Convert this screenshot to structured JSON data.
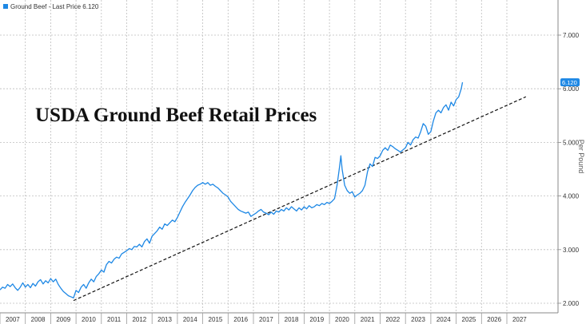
{
  "chart_data": {
    "type": "line",
    "title": "USDA Ground Beef Retail Prices",
    "ylabel": "Per Pound",
    "legend": {
      "label": "Ground Beef - Last Price 6.120",
      "placement": "top-left"
    },
    "last_value_label": "6.120",
    "xlim": [
      2007,
      2028
    ],
    "ylim": [
      1.95,
      7.6
    ],
    "x_ticks": [
      "2007",
      "2008",
      "2009",
      "2010",
      "2011",
      "2012",
      "2013",
      "2014",
      "2015",
      "2016",
      "2017",
      "2018",
      "2019",
      "2020",
      "2021",
      "2022",
      "2023",
      "2024",
      "2025",
      "2026",
      "2027"
    ],
    "y_ticks": [
      "2.000",
      "3.000",
      "4.000",
      "5.000",
      "6.000",
      "7.000"
    ],
    "grid": true,
    "colors": {
      "series": "#1e88e5",
      "trend": "#111111",
      "grid": "#bdbdbd"
    },
    "series": [
      {
        "values": [
          [
            2007.0,
            2.25
          ],
          [
            2007.1,
            2.3
          ],
          [
            2007.2,
            2.28
          ],
          [
            2007.3,
            2.35
          ],
          [
            2007.4,
            2.31
          ],
          [
            2007.5,
            2.36
          ],
          [
            2007.6,
            2.29
          ],
          [
            2007.7,
            2.24
          ],
          [
            2007.8,
            2.3
          ],
          [
            2007.9,
            2.38
          ],
          [
            2008.0,
            2.3
          ],
          [
            2008.1,
            2.35
          ],
          [
            2008.2,
            2.29
          ],
          [
            2008.3,
            2.37
          ],
          [
            2008.4,
            2.32
          ],
          [
            2008.5,
            2.4
          ],
          [
            2008.6,
            2.44
          ],
          [
            2008.7,
            2.36
          ],
          [
            2008.8,
            2.42
          ],
          [
            2008.9,
            2.38
          ],
          [
            2009.0,
            2.46
          ],
          [
            2009.1,
            2.4
          ],
          [
            2009.2,
            2.45
          ],
          [
            2009.3,
            2.35
          ],
          [
            2009.4,
            2.28
          ],
          [
            2009.5,
            2.22
          ],
          [
            2009.6,
            2.18
          ],
          [
            2009.7,
            2.14
          ],
          [
            2009.8,
            2.12
          ],
          [
            2009.9,
            2.1
          ],
          [
            2010.0,
            2.24
          ],
          [
            2010.1,
            2.2
          ],
          [
            2010.2,
            2.3
          ],
          [
            2010.3,
            2.35
          ],
          [
            2010.4,
            2.28
          ],
          [
            2010.5,
            2.38
          ],
          [
            2010.6,
            2.45
          ],
          [
            2010.7,
            2.4
          ],
          [
            2010.8,
            2.5
          ],
          [
            2010.9,
            2.55
          ],
          [
            2011.0,
            2.62
          ],
          [
            2011.1,
            2.58
          ],
          [
            2011.2,
            2.72
          ],
          [
            2011.3,
            2.78
          ],
          [
            2011.4,
            2.75
          ],
          [
            2011.5,
            2.82
          ],
          [
            2011.6,
            2.86
          ],
          [
            2011.7,
            2.84
          ],
          [
            2011.8,
            2.92
          ],
          [
            2011.9,
            2.95
          ],
          [
            2012.0,
            2.98
          ],
          [
            2012.1,
            3.02
          ],
          [
            2012.2,
            3.0
          ],
          [
            2012.3,
            3.06
          ],
          [
            2012.4,
            3.05
          ],
          [
            2012.5,
            3.1
          ],
          [
            2012.6,
            3.05
          ],
          [
            2012.7,
            3.15
          ],
          [
            2012.8,
            3.2
          ],
          [
            2012.9,
            3.12
          ],
          [
            2013.0,
            3.25
          ],
          [
            2013.1,
            3.3
          ],
          [
            2013.2,
            3.35
          ],
          [
            2013.3,
            3.42
          ],
          [
            2013.4,
            3.38
          ],
          [
            2013.5,
            3.48
          ],
          [
            2013.6,
            3.45
          ],
          [
            2013.7,
            3.5
          ],
          [
            2013.8,
            3.55
          ],
          [
            2013.9,
            3.52
          ],
          [
            2014.0,
            3.6
          ],
          [
            2014.1,
            3.7
          ],
          [
            2014.2,
            3.8
          ],
          [
            2014.3,
            3.88
          ],
          [
            2014.4,
            3.95
          ],
          [
            2014.5,
            4.02
          ],
          [
            2014.6,
            4.1
          ],
          [
            2014.7,
            4.16
          ],
          [
            2014.8,
            4.2
          ],
          [
            2014.9,
            4.22
          ],
          [
            2015.0,
            4.25
          ],
          [
            2015.1,
            4.22
          ],
          [
            2015.2,
            4.25
          ],
          [
            2015.3,
            4.2
          ],
          [
            2015.4,
            4.22
          ],
          [
            2015.5,
            4.18
          ],
          [
            2015.6,
            4.15
          ],
          [
            2015.7,
            4.1
          ],
          [
            2015.8,
            4.05
          ],
          [
            2015.9,
            4.02
          ],
          [
            2016.0,
            3.98
          ],
          [
            2016.1,
            3.9
          ],
          [
            2016.2,
            3.85
          ],
          [
            2016.3,
            3.8
          ],
          [
            2016.4,
            3.75
          ],
          [
            2016.5,
            3.72
          ],
          [
            2016.6,
            3.7
          ],
          [
            2016.7,
            3.68
          ],
          [
            2016.8,
            3.7
          ],
          [
            2016.9,
            3.62
          ],
          [
            2017.0,
            3.65
          ],
          [
            2017.1,
            3.68
          ],
          [
            2017.2,
            3.72
          ],
          [
            2017.3,
            3.75
          ],
          [
            2017.4,
            3.7
          ],
          [
            2017.5,
            3.68
          ],
          [
            2017.6,
            3.65
          ],
          [
            2017.7,
            3.7
          ],
          [
            2017.8,
            3.66
          ],
          [
            2017.9,
            3.72
          ],
          [
            2018.0,
            3.7
          ],
          [
            2018.1,
            3.75
          ],
          [
            2018.2,
            3.72
          ],
          [
            2018.3,
            3.78
          ],
          [
            2018.4,
            3.74
          ],
          [
            2018.5,
            3.8
          ],
          [
            2018.6,
            3.76
          ],
          [
            2018.7,
            3.72
          ],
          [
            2018.8,
            3.78
          ],
          [
            2018.9,
            3.74
          ],
          [
            2019.0,
            3.8
          ],
          [
            2019.1,
            3.76
          ],
          [
            2019.2,
            3.82
          ],
          [
            2019.3,
            3.78
          ],
          [
            2019.4,
            3.8
          ],
          [
            2019.5,
            3.84
          ],
          [
            2019.6,
            3.82
          ],
          [
            2019.7,
            3.86
          ],
          [
            2019.8,
            3.84
          ],
          [
            2019.9,
            3.88
          ],
          [
            2020.0,
            3.86
          ],
          [
            2020.1,
            3.9
          ],
          [
            2020.2,
            3.95
          ],
          [
            2020.3,
            4.2
          ],
          [
            2020.4,
            4.55
          ],
          [
            2020.45,
            4.75
          ],
          [
            2020.5,
            4.5
          ],
          [
            2020.6,
            4.2
          ],
          [
            2020.7,
            4.1
          ],
          [
            2020.8,
            4.05
          ],
          [
            2020.9,
            4.08
          ],
          [
            2021.0,
            3.98
          ],
          [
            2021.1,
            4.02
          ],
          [
            2021.2,
            4.05
          ],
          [
            2021.3,
            4.1
          ],
          [
            2021.4,
            4.2
          ],
          [
            2021.5,
            4.45
          ],
          [
            2021.6,
            4.6
          ],
          [
            2021.7,
            4.55
          ],
          [
            2021.8,
            4.72
          ],
          [
            2021.9,
            4.7
          ],
          [
            2022.0,
            4.75
          ],
          [
            2022.1,
            4.85
          ],
          [
            2022.2,
            4.9
          ],
          [
            2022.3,
            4.85
          ],
          [
            2022.4,
            4.95
          ],
          [
            2022.5,
            4.92
          ],
          [
            2022.6,
            4.88
          ],
          [
            2022.7,
            4.85
          ],
          [
            2022.8,
            4.82
          ],
          [
            2022.9,
            4.86
          ],
          [
            2023.0,
            4.9
          ],
          [
            2023.1,
            5.0
          ],
          [
            2023.2,
            4.95
          ],
          [
            2023.3,
            5.05
          ],
          [
            2023.4,
            5.1
          ],
          [
            2023.5,
            5.08
          ],
          [
            2023.6,
            5.2
          ],
          [
            2023.7,
            5.35
          ],
          [
            2023.8,
            5.3
          ],
          [
            2023.9,
            5.15
          ],
          [
            2024.0,
            5.2
          ],
          [
            2024.1,
            5.4
          ],
          [
            2024.2,
            5.55
          ],
          [
            2024.3,
            5.6
          ],
          [
            2024.4,
            5.55
          ],
          [
            2024.5,
            5.65
          ],
          [
            2024.6,
            5.7
          ],
          [
            2024.7,
            5.6
          ],
          [
            2024.8,
            5.75
          ],
          [
            2024.9,
            5.68
          ],
          [
            2025.0,
            5.8
          ],
          [
            2025.1,
            5.85
          ],
          [
            2025.2,
            6.0
          ],
          [
            2025.25,
            6.12
          ]
        ]
      }
    ],
    "trendline": {
      "style": "dashed",
      "points": [
        [
          2009.9,
          2.05
        ],
        [
          2027.75,
          5.85
        ]
      ]
    }
  }
}
